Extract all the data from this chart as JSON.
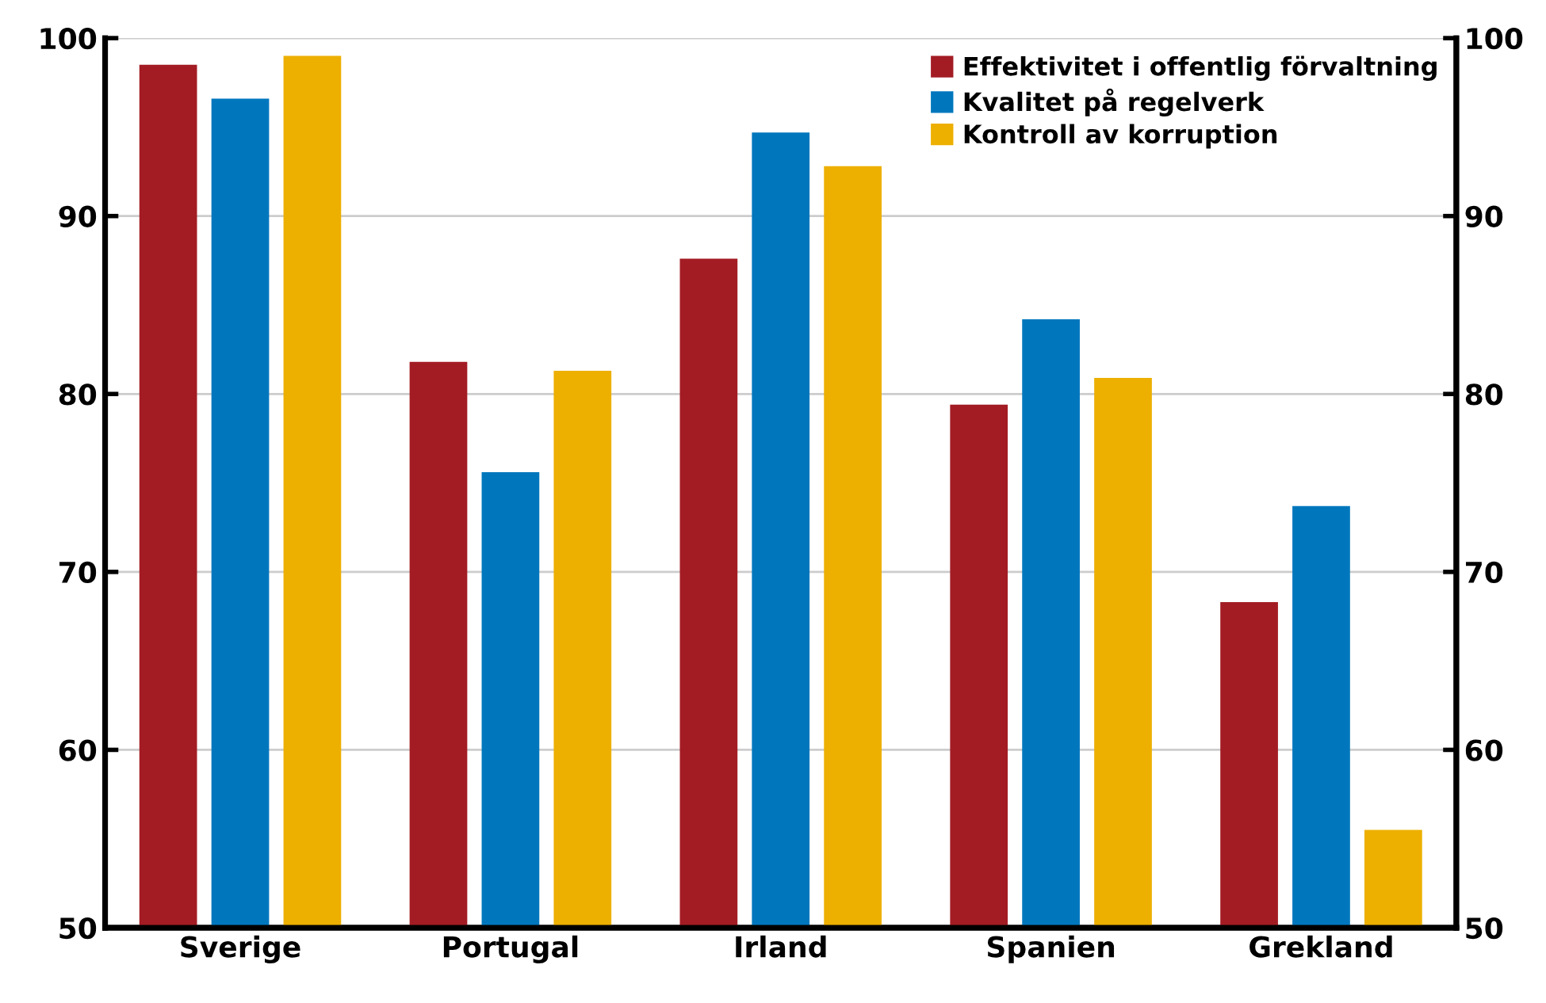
{
  "chart_data": {
    "type": "bar",
    "categories": [
      "Sverige",
      "Portugal",
      "Irland",
      "Spanien",
      "Grekland"
    ],
    "series": [
      {
        "name": "Effektivitet i offentlig förvaltning",
        "color": "#a31c24",
        "values": [
          98.5,
          81.8,
          87.6,
          79.4,
          68.3
        ]
      },
      {
        "name": "Kvalitet på regelverk",
        "color": "#0077bd",
        "values": [
          96.6,
          75.6,
          94.7,
          84.2,
          73.7
        ]
      },
      {
        "name": "Kontroll av korruption",
        "color": "#edaf00",
        "values": [
          99.0,
          81.3,
          92.8,
          80.9,
          55.5
        ]
      }
    ],
    "ylim": [
      50,
      100
    ],
    "yticks": [
      50,
      60,
      70,
      80,
      90,
      100
    ],
    "y2lim": [
      50,
      100
    ],
    "y2ticks": [
      50,
      60,
      70,
      80,
      90,
      100
    ],
    "grid": true,
    "legend": "top right"
  }
}
